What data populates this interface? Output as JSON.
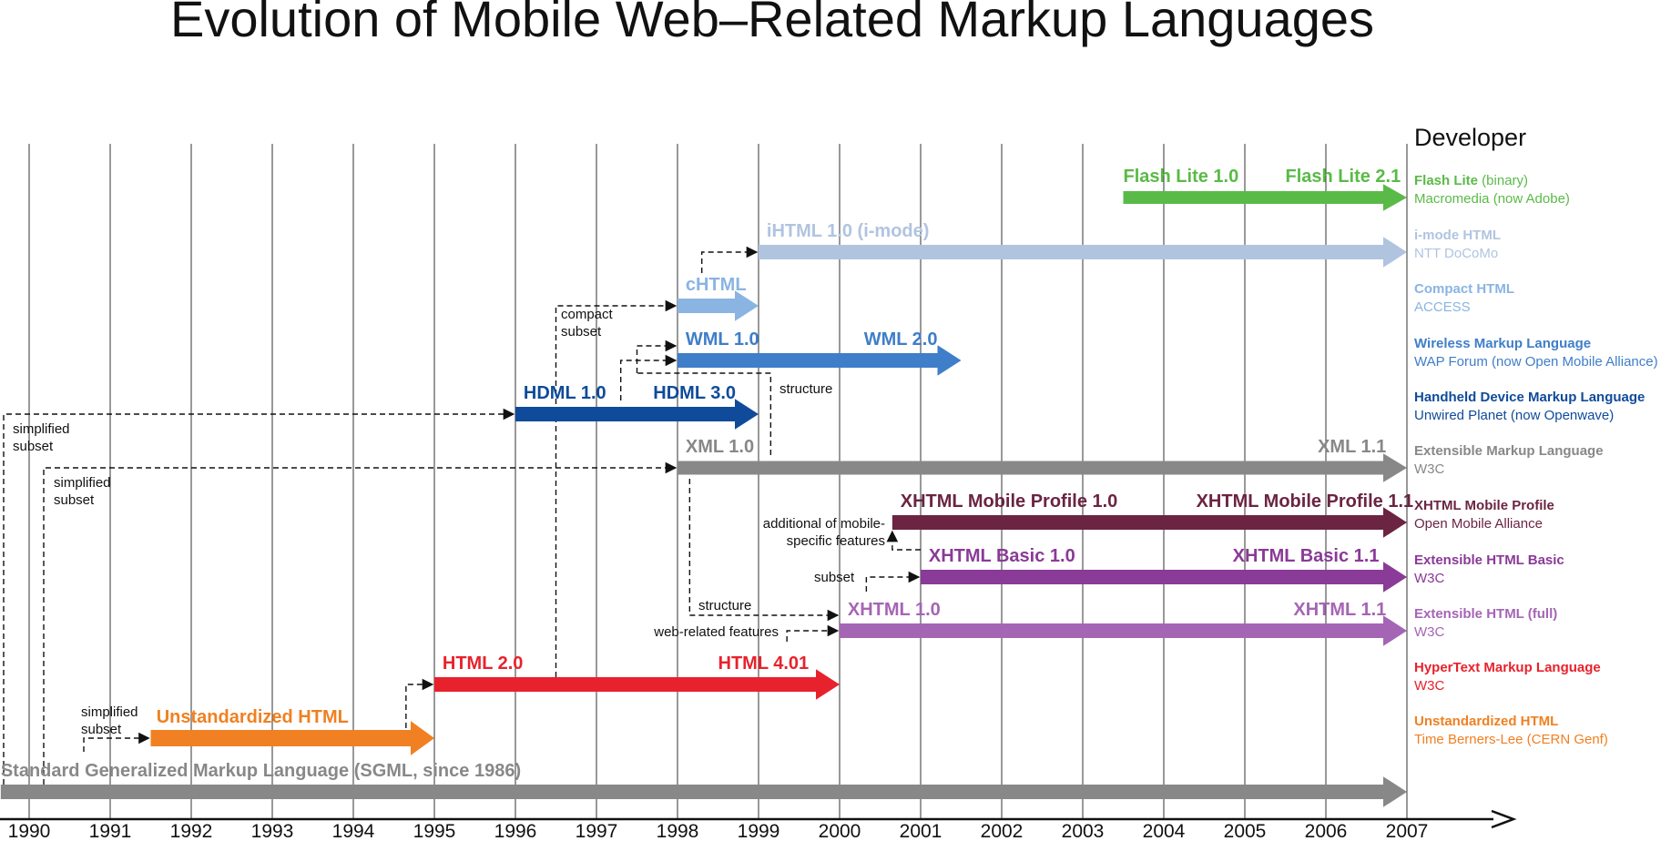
{
  "title": "Evolution of Mobile Web–Related Markup Languages",
  "developer_heading": "Developer",
  "years": [
    "1990",
    "1991",
    "1992",
    "1993",
    "1994",
    "1995",
    "1996",
    "1997",
    "1998",
    "1999",
    "2000",
    "2001",
    "2002",
    "2003",
    "2004",
    "2005",
    "2006",
    "2007"
  ],
  "colors": {
    "flash": "#5aba47",
    "imode": "#b0c4e0",
    "chtml": "#8ab4e2",
    "wml": "#3f7ec8",
    "hdml": "#0f4b9a",
    "xml": "#888888",
    "xhtml_mp": "#6b2442",
    "xhtml_basic": "#8a3a97",
    "xhtml": "#a565b5",
    "html": "#e8222c",
    "unstd": "#f08022",
    "sgml": "#888888"
  },
  "languages": [
    {
      "key": "flash",
      "start": 2003.5,
      "end": 2007,
      "labels": [
        {
          "text": "Flash Lite 1.0",
          "at": 2003.5
        },
        {
          "text": "Flash Lite 2.1",
          "at": 2005.5
        }
      ],
      "legend_name": "Flash Lite",
      "legend_suffix": " (binary)",
      "developer": "Macromedia (now Adobe)"
    },
    {
      "key": "imode",
      "start": 1999,
      "end": 2007,
      "labels": [
        {
          "text": "iHTML 1.0 (i-mode)",
          "at": 1999.1
        }
      ],
      "legend_name": "i-mode HTML",
      "legend_suffix": "",
      "developer": "NTT DoCoMo"
    },
    {
      "key": "chtml",
      "start": 1998,
      "end": 1999,
      "labels": [
        {
          "text": "cHTML",
          "at": 1998.1
        }
      ],
      "legend_name": "Compact HTML",
      "legend_suffix": "",
      "developer": "ACCESS"
    },
    {
      "key": "wml",
      "start": 1998,
      "end": 2001.5,
      "labels": [
        {
          "text": "WML 1.0",
          "at": 1998.1
        },
        {
          "text": "WML 2.0",
          "at": 2000.3
        }
      ],
      "legend_name": "Wireless Markup Language",
      "legend_suffix": "",
      "developer": "WAP Forum (now Open Mobile Alliance)"
    },
    {
      "key": "hdml",
      "start": 1996,
      "end": 1999,
      "labels": [
        {
          "text": "HDML 1.0",
          "at": 1996.1
        },
        {
          "text": "HDML 3.0",
          "at": 1997.7
        }
      ],
      "legend_name": "Handheld Device Markup Language",
      "legend_suffix": "",
      "developer": "Unwired Planet (now Openwave)"
    },
    {
      "key": "xml",
      "start": 1998,
      "end": 2007,
      "labels": [
        {
          "text": "XML 1.0",
          "at": 1998.1
        },
        {
          "text": "XML 1.1",
          "at": 2005.9
        }
      ],
      "legend_name": "Extensible Markup Language",
      "legend_suffix": "",
      "developer": "W3C"
    },
    {
      "key": "xhtml_mp",
      "start": 2000.65,
      "end": 2007,
      "labels": [
        {
          "text": "XHTML Mobile Profile 1.0",
          "at": 2000.75
        },
        {
          "text": "XHTML Mobile Profile 1.1",
          "at": 2004.4
        }
      ],
      "legend_name": "XHTML Mobile Profile",
      "legend_suffix": "",
      "developer": "Open Mobile Alliance"
    },
    {
      "key": "xhtml_basic",
      "start": 2001,
      "end": 2007,
      "labels": [
        {
          "text": "XHTML Basic 1.0",
          "at": 2001.1
        },
        {
          "text": "XHTML Basic 1.1",
          "at": 2004.85
        }
      ],
      "legend_name": "Extensible HTML Basic",
      "legend_suffix": "",
      "developer": "W3C"
    },
    {
      "key": "xhtml",
      "start": 2000,
      "end": 2007,
      "labels": [
        {
          "text": "XHTML 1.0",
          "at": 2000.1
        },
        {
          "text": "XHTML 1.1",
          "at": 2005.6
        }
      ],
      "legend_name": "Extensible HTML (full)",
      "legend_suffix": "",
      "developer": "W3C"
    },
    {
      "key": "html",
      "start": 1995,
      "end": 2000,
      "labels": [
        {
          "text": "HTML 2.0",
          "at": 1995.1
        },
        {
          "text": "HTML 4.01",
          "at": 1998.5
        }
      ],
      "legend_name": "HyperText Markup Language",
      "legend_suffix": "",
      "developer": "W3C"
    },
    {
      "key": "unstd",
      "start": 1991.5,
      "end": 1995,
      "labels": [
        {
          "text": "Unstandardized HTML",
          "at": 1991.57
        }
      ],
      "legend_name": "Unstandardized HTML",
      "legend_suffix": "",
      "developer": "Time Berners-Lee (CERN Genf)"
    },
    {
      "key": "sgml",
      "start": 1989.65,
      "end": 2007,
      "labels": [
        {
          "text": "Standard Generalized Markup Language (SGML, since 1986)",
          "at": 1989.65
        }
      ],
      "legend_name": "",
      "legend_suffix": "",
      "developer": ""
    }
  ],
  "annotations": {
    "compact_subset": [
      "compact",
      "subset"
    ],
    "simplified_subset_1": [
      "simplified",
      "subset"
    ],
    "simplified_subset_2": [
      "simplified",
      "subset"
    ],
    "simplified_subset_3": [
      "simplified",
      "subset"
    ],
    "structure_1": "structure",
    "structure_2": "structure",
    "additional_features": [
      "additional of mobile-",
      "specific features"
    ],
    "subset": "subset",
    "web_related_features": "web-related features"
  }
}
